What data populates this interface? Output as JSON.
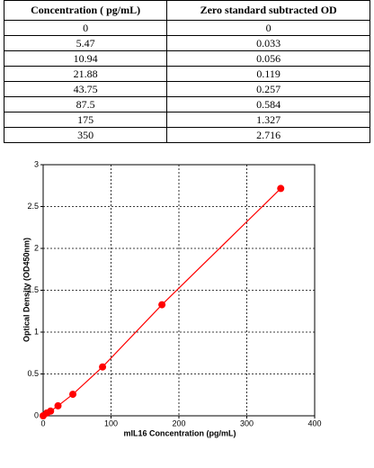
{
  "table": {
    "header": [
      "Concentration ( pg/mL)",
      "Zero standard subtracted OD"
    ],
    "rows": [
      [
        "0",
        "0"
      ],
      [
        "5.47",
        "0.033"
      ],
      [
        "10.94",
        "0.056"
      ],
      [
        "21.88",
        "0.119"
      ],
      [
        "43.75",
        "0.257"
      ],
      [
        "87.5",
        "0.584"
      ],
      [
        "175",
        "1.327"
      ],
      [
        "350",
        "2.716"
      ]
    ]
  },
  "chart_data": {
    "type": "line",
    "x_label": "mIL16 Concentration (pg/mL)",
    "y_label": "Optical Density (OD450nm)",
    "x": [
      0,
      5.47,
      10.94,
      21.88,
      43.75,
      87.5,
      175,
      350
    ],
    "series": [
      {
        "color": "#ff0000",
        "values": [
          0,
          0.033,
          0.056,
          0.119,
          0.257,
          0.584,
          1.327,
          2.716
        ]
      }
    ],
    "xlim": [
      0,
      400
    ],
    "xticks": [
      0,
      100,
      200,
      300,
      400
    ],
    "ylim": [
      0,
      3
    ],
    "yticks": [
      0,
      0.5,
      1,
      1.5,
      2,
      2.5,
      3
    ],
    "grid": true
  }
}
